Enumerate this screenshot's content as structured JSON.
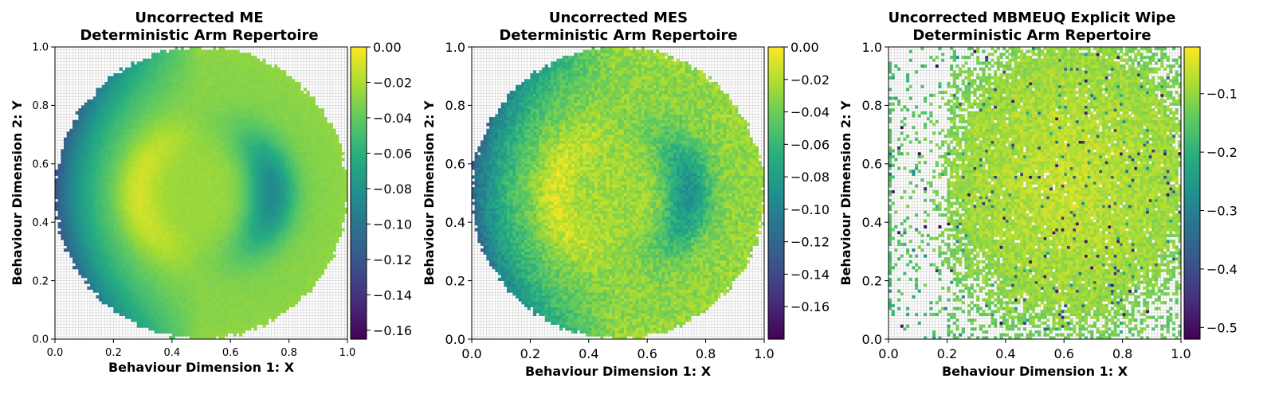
{
  "chart_data": [
    {
      "type": "heatmap",
      "title": [
        "Uncorrected ME",
        "Deterministic Arm Repertoire"
      ],
      "xlabel": "Behaviour Dimension 1: X",
      "ylabel": "Behaviour Dimension 2: Y",
      "xlim": [
        0.0,
        1.0
      ],
      "ylim": [
        0.0,
        1.0
      ],
      "xticks": [
        "0.0",
        "0.2",
        "0.4",
        "0.6",
        "0.8",
        "1.0"
      ],
      "yticks": [
        "0.0",
        "0.2",
        "0.4",
        "0.6",
        "0.8",
        "1.0"
      ],
      "grid": true,
      "grid_cells": 100,
      "colormap": "viridis",
      "clim": [
        -0.165,
        0.0
      ],
      "cbar_ticks": [
        "0.00",
        "−0.02",
        "−0.04",
        "−0.06",
        "−0.08",
        "−0.10",
        "−0.12",
        "−0.14",
        "−0.16"
      ],
      "cbar_tick_values": [
        0.0,
        -0.02,
        -0.04,
        -0.06,
        -0.08,
        -0.1,
        -0.12,
        -0.14,
        -0.16
      ],
      "pattern": "disc",
      "disc_center": [
        0.5,
        0.5
      ],
      "disc_radius": 0.5,
      "noise": 0.002
    },
    {
      "type": "heatmap",
      "title": [
        "Uncorrected MES",
        "Deterministic Arm Repertoire"
      ],
      "xlabel": "Behaviour Dimension 1: X",
      "ylabel": "Behaviour Dimension 2: Y",
      "xlim": [
        0.0,
        1.0
      ],
      "ylim": [
        0.0,
        1.0
      ],
      "xticks": [
        "0.0",
        "0.2",
        "0.4",
        "0.6",
        "0.8",
        "1.0"
      ],
      "yticks": [
        "0.0",
        "0.2",
        "0.4",
        "0.6",
        "0.8",
        "1.0"
      ],
      "grid": true,
      "grid_cells": 100,
      "colormap": "viridis",
      "clim": [
        -0.18,
        0.0
      ],
      "cbar_ticks": [
        "0.00",
        "−0.02",
        "−0.04",
        "−0.06",
        "−0.08",
        "−0.10",
        "−0.12",
        "−0.14",
        "−0.16"
      ],
      "cbar_tick_values": [
        0.0,
        -0.02,
        -0.04,
        -0.06,
        -0.08,
        -0.1,
        -0.12,
        -0.14,
        -0.16
      ],
      "pattern": "disc",
      "disc_center": [
        0.5,
        0.5
      ],
      "disc_radius": 0.5,
      "noise": 0.012
    },
    {
      "type": "heatmap",
      "title": [
        "Uncorrected MBMEUQ Explicit Wipe",
        "Deterministic Arm Repertoire"
      ],
      "xlabel": "Behaviour Dimension 1: X",
      "ylabel": "Behaviour Dimension 2: Y",
      "xlim": [
        0.0,
        1.0
      ],
      "ylim": [
        0.0,
        1.0
      ],
      "xticks": [
        "0.0",
        "0.2",
        "0.4",
        "0.6",
        "0.8",
        "1.0"
      ],
      "yticks": [
        "0.0",
        "0.2",
        "0.4",
        "0.6",
        "0.8",
        "1.0"
      ],
      "grid": true,
      "grid_cells": 100,
      "colormap": "viridis",
      "clim": [
        -0.52,
        -0.02
      ],
      "cbar_ticks": [
        "−0.1",
        "−0.2",
        "−0.3",
        "−0.4",
        "−0.5"
      ],
      "cbar_tick_values": [
        -0.1,
        -0.2,
        -0.3,
        -0.4,
        -0.5
      ],
      "pattern": "scatter",
      "noise": 0.03
    }
  ]
}
